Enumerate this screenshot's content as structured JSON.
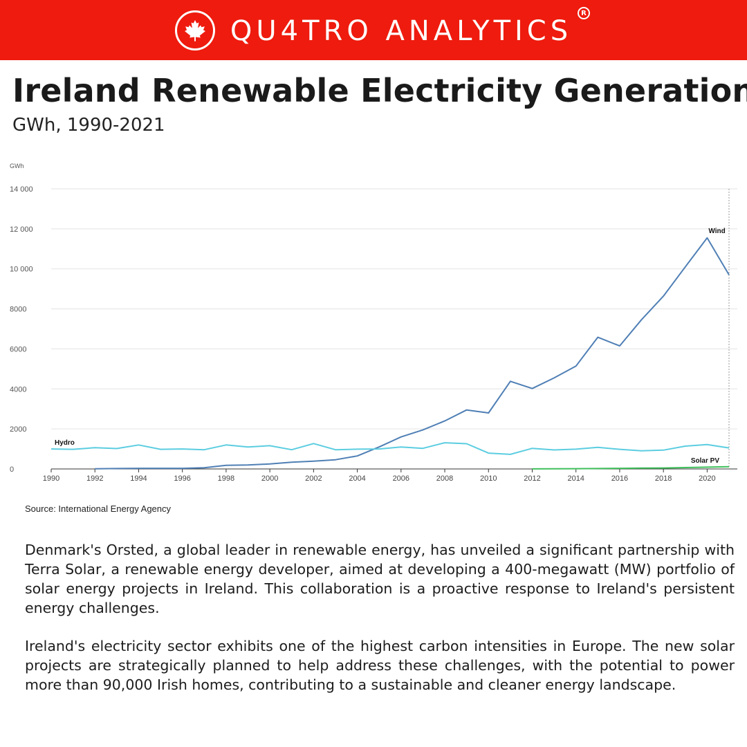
{
  "header": {
    "brand": "QU4TRO ANALYTICS",
    "registered_mark": "R",
    "logo_icon": "maple-leaf-icon",
    "background_color": "#ee1b0e"
  },
  "title": "Ireland Renewable Electricity Generation",
  "subtitle": "GWh, 1990-2021",
  "chart_data": {
    "type": "line",
    "ylabel": "GWh",
    "xlabel": "",
    "xlim": [
      1990,
      2021
    ],
    "ylim": [
      0,
      14000
    ],
    "y_ticks": [
      0,
      2000,
      4000,
      6000,
      8000,
      10000,
      12000,
      14000
    ],
    "y_tick_labels": [
      "0",
      "2000",
      "4000",
      "6000",
      "8000",
      "10 000",
      "12 000",
      "14 000"
    ],
    "x_ticks": [
      1990,
      1992,
      1994,
      1996,
      1998,
      2000,
      2002,
      2004,
      2006,
      2008,
      2010,
      2012,
      2014,
      2016,
      2018,
      2020
    ],
    "grid": true,
    "series": [
      {
        "name": "Wind",
        "color": "#4f7fb5",
        "x": [
          1992,
          1993,
          1994,
          1995,
          1996,
          1997,
          1998,
          1999,
          2000,
          2001,
          2002,
          2003,
          2004,
          2005,
          2006,
          2007,
          2008,
          2009,
          2010,
          2011,
          2012,
          2013,
          2014,
          2015,
          2016,
          2017,
          2018,
          2019,
          2020,
          2021
        ],
        "values": [
          10,
          20,
          30,
          30,
          30,
          60,
          180,
          200,
          250,
          340,
          390,
          460,
          650,
          1100,
          1600,
          1950,
          2400,
          2950,
          2800,
          4380,
          4020,
          4550,
          5140,
          6580,
          6150,
          7460,
          8640,
          10100,
          11550,
          9700
        ]
      },
      {
        "name": "Hydro",
        "color": "#5bcde0",
        "x": [
          1990,
          1991,
          1992,
          1993,
          1994,
          1995,
          1996,
          1997,
          1998,
          1999,
          2000,
          2001,
          2002,
          2003,
          2004,
          2005,
          2006,
          2007,
          2008,
          2009,
          2010,
          2011,
          2012,
          2013,
          2014,
          2015,
          2016,
          2017,
          2018,
          2019,
          2020,
          2021
        ],
        "values": [
          1000,
          980,
          1060,
          1020,
          1200,
          980,
          1000,
          960,
          1200,
          1100,
          1160,
          960,
          1270,
          960,
          990,
          1000,
          1100,
          1030,
          1310,
          1260,
          790,
          730,
          1030,
          950,
          990,
          1080,
          980,
          910,
          940,
          1140,
          1220,
          1050
        ]
      },
      {
        "name": "Solar PV",
        "color": "#3fbf5b",
        "x": [
          2012,
          2013,
          2014,
          2015,
          2016,
          2017,
          2018,
          2019,
          2020,
          2021
        ],
        "values": [
          5,
          10,
          15,
          20,
          30,
          40,
          50,
          70,
          90,
          110
        ]
      }
    ],
    "source": "Source: International Energy Agency"
  },
  "body": {
    "paragraph_1": "Denmark's Orsted, a global leader in renewable energy, has unveiled a significant partnership with Terra Solar, a renewable energy developer, aimed at developing a 400-megawatt (MW) portfolio of solar energy projects in Ireland. This collaboration is a proactive response to Ireland's persistent energy challenges.",
    "paragraph_2": "Ireland's electricity sector exhibits one of the highest carbon intensities in Europe. The new solar projects are strategically planned to help address these challenges, with the potential to power more than 90,000 Irish homes, contributing to a sustainable and cleaner energy landscape."
  }
}
